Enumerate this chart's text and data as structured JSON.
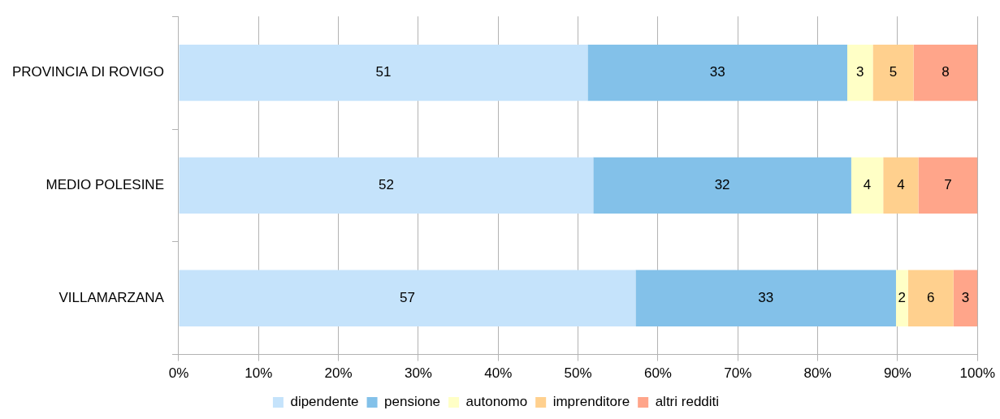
{
  "chart_data": {
    "type": "bar",
    "orientation": "horizontal",
    "stacked": true,
    "categories": [
      "PROVINCIA DI ROVIGO",
      "MEDIO POLESINE",
      "VILLAMARZANA"
    ],
    "series": [
      {
        "name": "dipendente",
        "color": "#c5e3fb",
        "values": [
          51.2,
          51.9,
          57.2
        ],
        "value_labels": [
          "51",
          "52",
          "57"
        ]
      },
      {
        "name": "pensione",
        "color": "#83c1e9",
        "values": [
          32.5,
          32.3,
          32.6
        ],
        "value_labels": [
          "33",
          "32",
          "33"
        ]
      },
      {
        "name": "autonomo",
        "color": "#ffffc6",
        "values": [
          3.2,
          4.0,
          1.5
        ],
        "value_labels": [
          "3",
          "4",
          "2"
        ]
      },
      {
        "name": "imprenditore",
        "color": "#ffd08e",
        "values": [
          5.1,
          4.4,
          5.7
        ],
        "value_labels": [
          "5",
          "4",
          "6"
        ]
      },
      {
        "name": "altri redditi",
        "color": "#ffa58a",
        "values": [
          8.0,
          7.4,
          3.0
        ],
        "value_labels": [
          "8",
          "7",
          "3"
        ]
      }
    ],
    "xlim": [
      0,
      100
    ],
    "xticks": [
      {
        "value": 0,
        "label": "0%"
      },
      {
        "value": 10,
        "label": "10%"
      },
      {
        "value": 20,
        "label": "20%"
      },
      {
        "value": 30,
        "label": "30%"
      },
      {
        "value": 40,
        "label": "40%"
      },
      {
        "value": 50,
        "label": "50%"
      },
      {
        "value": 60,
        "label": "60%"
      },
      {
        "value": 70,
        "label": "70%"
      },
      {
        "value": 80,
        "label": "80%"
      },
      {
        "value": 90,
        "label": "90%"
      },
      {
        "value": 100,
        "label": "100%"
      }
    ],
    "grid": "x",
    "legend": "bottom"
  }
}
